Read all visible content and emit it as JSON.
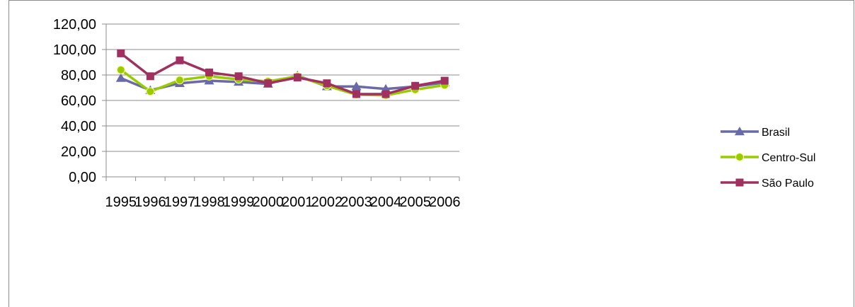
{
  "chart_data": {
    "type": "line",
    "title": "",
    "xlabel": "",
    "ylabel": "",
    "categories": [
      "1995",
      "1996",
      "1997",
      "1998",
      "1999",
      "2000",
      "2001",
      "2002",
      "2003",
      "2004",
      "2005",
      "2006"
    ],
    "y_ticks": [
      "0,00",
      "20,00",
      "40,00",
      "60,00",
      "80,00",
      "100,00",
      "120,00"
    ],
    "ylim": [
      0,
      120
    ],
    "grid": "horizontal",
    "legend_position": "right",
    "series": [
      {
        "name": "Brasil",
        "color": "#6a6aa8",
        "marker": "triangle",
        "values": [
          77.5,
          68.0,
          73.5,
          75.5,
          74.5,
          73.0,
          79.5,
          71.0,
          71.0,
          69.0,
          71.0,
          74.0
        ]
      },
      {
        "name": "Centro-Sul",
        "color": "#99cc00",
        "marker": "circle",
        "values": [
          84.0,
          67.0,
          76.0,
          79.0,
          76.5,
          75.0,
          79.0,
          71.5,
          64.5,
          64.0,
          68.5,
          72.0
        ]
      },
      {
        "name": "São Paulo",
        "color": "#a0305f",
        "marker": "square",
        "values": [
          97.0,
          79.0,
          91.5,
          82.0,
          79.0,
          73.5,
          78.0,
          73.5,
          65.0,
          65.0,
          71.5,
          75.5
        ]
      }
    ]
  }
}
